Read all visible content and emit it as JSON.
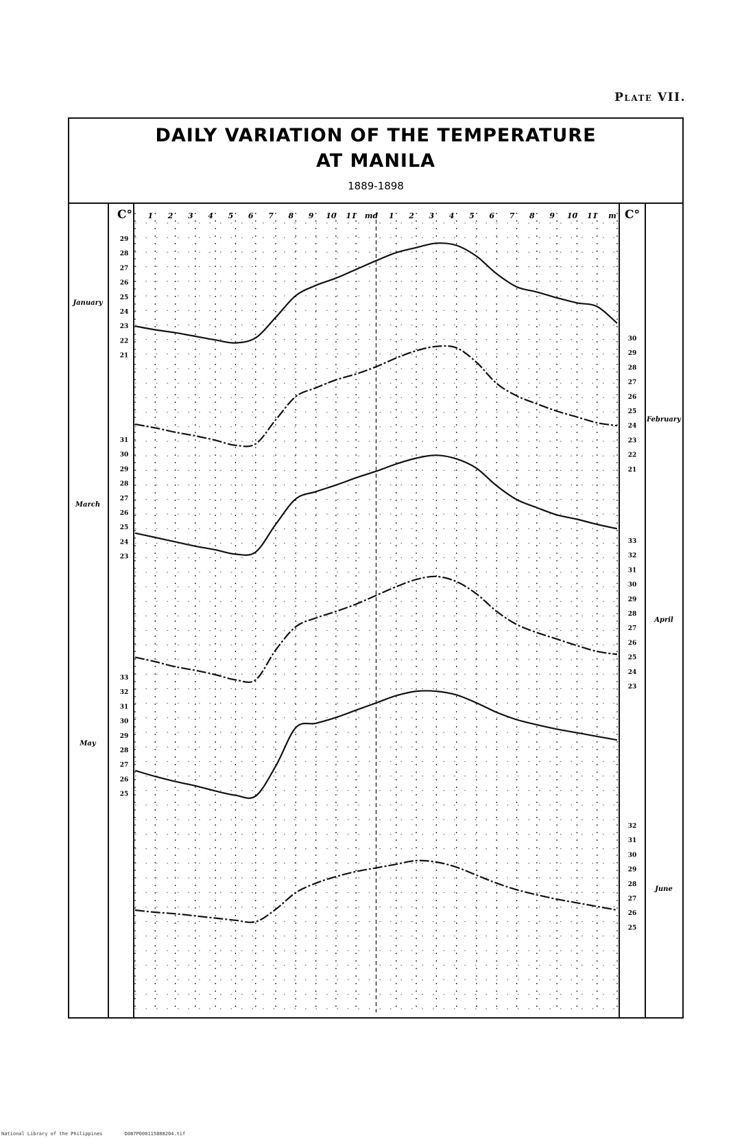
{
  "plate_label": "Plate VII.",
  "chart_data": {
    "type": "line",
    "title": "DAILY VARIATION OF THE TEMPERATURE",
    "title_line2": "AT MANILA",
    "subtitle": "1889-1898",
    "unit_label": "C°",
    "x": [
      0,
      1,
      2,
      3,
      4,
      5,
      6,
      7,
      8,
      9,
      10,
      11,
      12,
      13,
      14,
      15,
      16,
      17,
      18,
      19,
      20,
      21,
      22,
      23,
      24
    ],
    "hour_labels": [
      "1",
      "2",
      "3",
      "4",
      "5",
      "6",
      "7",
      "8",
      "9",
      "10",
      "11",
      "md",
      "1",
      "2",
      "3",
      "4",
      "5",
      "6",
      "7",
      "8",
      "9",
      "10",
      "11",
      "m"
    ],
    "series": [
      {
        "name": "January",
        "axis": "left",
        "ticks": [
          "29",
          "28",
          "27",
          "26",
          "25",
          "24",
          "23",
          "22",
          "21"
        ],
        "values": [
          23.0,
          22.75,
          22.55,
          22.3,
          22.05,
          21.85,
          22.2,
          23.6,
          25.1,
          25.8,
          26.3,
          26.9,
          27.5,
          28.05,
          28.4,
          28.7,
          28.55,
          27.8,
          26.6,
          25.7,
          25.35,
          24.95,
          24.6,
          24.35,
          23.2
        ]
      },
      {
        "name": "February",
        "axis": "right",
        "ticks": [
          "30",
          "29",
          "28",
          "27",
          "26",
          "25",
          "24",
          "23",
          "22",
          "21"
        ],
        "values": [
          24.1,
          23.85,
          23.55,
          23.3,
          23.0,
          22.65,
          22.75,
          24.4,
          26.0,
          26.6,
          27.15,
          27.55,
          28.05,
          28.65,
          29.15,
          29.45,
          29.35,
          28.35,
          26.9,
          26.05,
          25.5,
          25.0,
          24.6,
          24.2,
          24.0
        ]
      },
      {
        "name": "March",
        "axis": "left",
        "ticks": [
          "31",
          "30",
          "29",
          "28",
          "27",
          "26",
          "25",
          "24",
          "23"
        ],
        "values": [
          24.6,
          24.3,
          24.0,
          23.7,
          23.45,
          23.15,
          23.3,
          25.2,
          26.95,
          27.45,
          27.9,
          28.4,
          28.85,
          29.35,
          29.75,
          29.95,
          29.7,
          29.05,
          27.85,
          26.9,
          26.35,
          25.85,
          25.55,
          25.2,
          24.9
        ]
      },
      {
        "name": "April",
        "axis": "right",
        "ticks": [
          "33",
          "32",
          "31",
          "30",
          "29",
          "28",
          "27",
          "26",
          "25",
          "24",
          "23"
        ],
        "values": [
          25.0,
          24.7,
          24.35,
          24.1,
          23.8,
          23.45,
          23.45,
          25.5,
          27.1,
          27.7,
          28.15,
          28.65,
          29.25,
          29.85,
          30.35,
          30.55,
          30.2,
          29.35,
          28.15,
          27.25,
          26.7,
          26.25,
          25.8,
          25.4,
          25.2
        ]
      },
      {
        "name": "May",
        "axis": "left",
        "ticks": [
          "33",
          "32",
          "31",
          "30",
          "29",
          "28",
          "27",
          "26",
          "25"
        ],
        "values": [
          26.6,
          26.2,
          25.85,
          25.55,
          25.2,
          24.9,
          24.85,
          26.9,
          29.55,
          29.85,
          30.25,
          30.75,
          31.25,
          31.75,
          32.05,
          32.05,
          31.8,
          31.25,
          30.6,
          30.1,
          29.75,
          29.45,
          29.2,
          28.95,
          28.7
        ]
      },
      {
        "name": "June",
        "axis": "right",
        "ticks": [
          "32",
          "31",
          "30",
          "29",
          "28",
          "27",
          "26",
          "25"
        ],
        "values": [
          26.2,
          26.05,
          25.95,
          25.8,
          25.65,
          25.5,
          25.4,
          26.25,
          27.4,
          28.05,
          28.5,
          28.85,
          29.1,
          29.35,
          29.6,
          29.5,
          29.15,
          28.6,
          28.05,
          27.6,
          27.25,
          26.95,
          26.7,
          26.45,
          26.2
        ]
      }
    ]
  },
  "footer": {
    "library": "National Library of the Philippines",
    "file": "D087P000115888204.tif"
  }
}
